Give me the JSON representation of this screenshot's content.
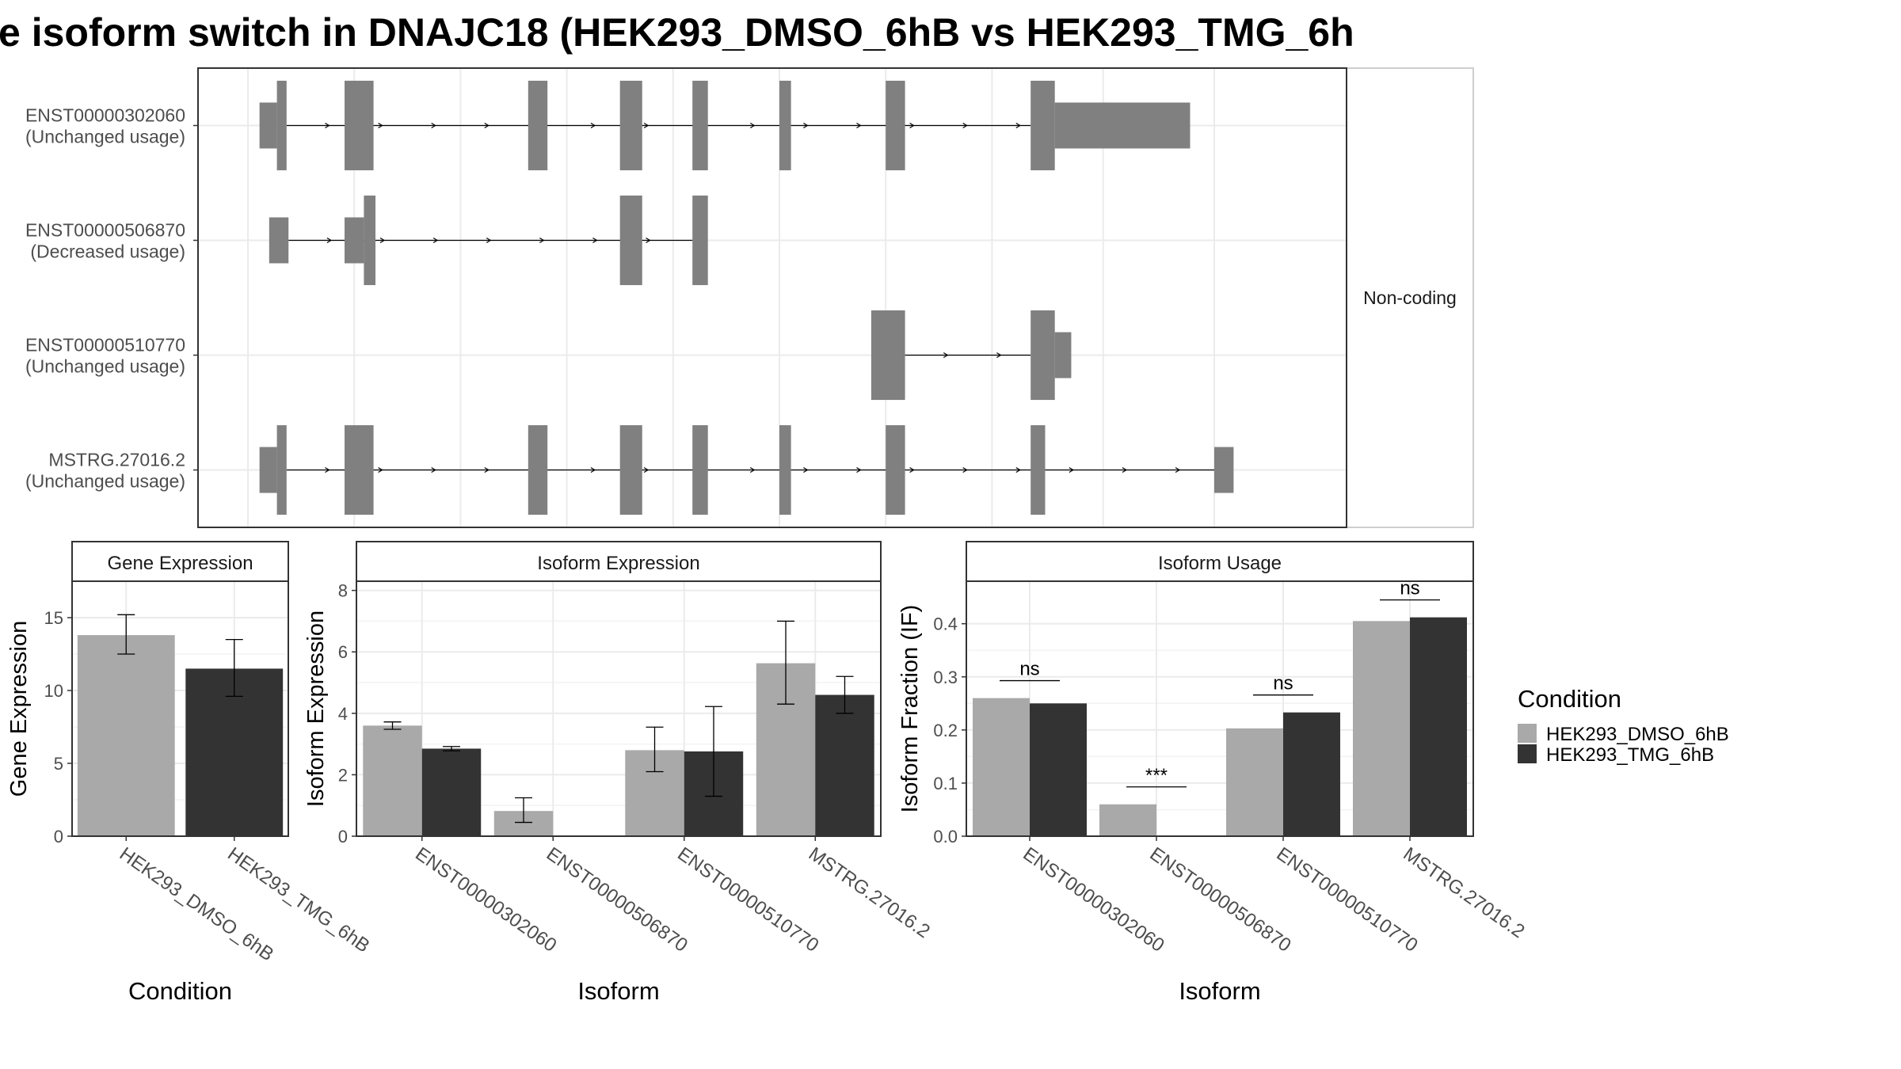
{
  "title": "e isoform switch in DNAJC18 (HEK293_DMSO_6hB vs HEK293_TMG_6h",
  "colors": {
    "dmso": "#a9a9a9",
    "tmg": "#333333",
    "exon": "#808080",
    "grid": "#ebebeb",
    "strip": "#ffffff",
    "border": "#333333"
  },
  "structure": {
    "strip_label": "Non-coding",
    "isoforms": [
      {
        "id": "ENST00000302060",
        "usage": "(Unchanged usage)",
        "exons": [
          [
            0.012,
            0.03,
            "n"
          ],
          [
            0.03,
            0.04,
            "w"
          ],
          [
            0.1,
            0.13,
            "w"
          ],
          [
            0.29,
            0.31,
            "w"
          ],
          [
            0.385,
            0.408,
            "w"
          ],
          [
            0.46,
            0.476,
            "w"
          ],
          [
            0.55,
            0.562,
            "w"
          ],
          [
            0.66,
            0.68,
            "w"
          ],
          [
            0.81,
            0.835,
            "w"
          ],
          [
            0.835,
            0.975,
            "n"
          ]
        ],
        "line": [
          0.04,
          0.81
        ]
      },
      {
        "id": "ENST00000506870",
        "usage": "(Decreased usage)",
        "exons": [
          [
            0.022,
            0.042,
            "n"
          ],
          [
            0.1,
            0.12,
            "n"
          ],
          [
            0.12,
            0.132,
            "w"
          ],
          [
            0.385,
            0.408,
            "w"
          ],
          [
            0.46,
            0.476,
            "w"
          ]
        ],
        "line": [
          0.042,
          0.46
        ]
      },
      {
        "id": "ENST00000510770",
        "usage": "(Unchanged usage)",
        "exons": [
          [
            0.645,
            0.68,
            "w"
          ],
          [
            0.81,
            0.835,
            "w"
          ],
          [
            0.835,
            0.852,
            "n"
          ]
        ],
        "line": [
          0.68,
          0.81
        ]
      },
      {
        "id": "MSTRG.27016.2",
        "usage": "(Unchanged usage)",
        "exons": [
          [
            0.012,
            0.03,
            "n"
          ],
          [
            0.03,
            0.04,
            "w"
          ],
          [
            0.1,
            0.13,
            "w"
          ],
          [
            0.29,
            0.31,
            "w"
          ],
          [
            0.385,
            0.408,
            "w"
          ],
          [
            0.46,
            0.476,
            "w"
          ],
          [
            0.55,
            0.562,
            "w"
          ],
          [
            0.66,
            0.68,
            "w"
          ],
          [
            0.81,
            0.825,
            "w"
          ],
          [
            1.0,
            1.02,
            "n"
          ]
        ],
        "line": [
          0.04,
          1.0
        ]
      }
    ]
  },
  "chart_data": [
    {
      "type": "bar",
      "title": "Gene Expression",
      "xlabel": "Condition",
      "ylabel": "Gene Expression",
      "ylim": [
        0,
        17.5
      ],
      "yticks": [
        "0",
        "5",
        "10",
        "15"
      ],
      "categories": [
        "HEK293_DMSO_6hB",
        "HEK293_TMG_6hB"
      ],
      "series": [
        {
          "values": [
            13.8,
            11.5
          ],
          "err_low": [
            12.5,
            9.6
          ],
          "err_high": [
            15.2,
            13.5
          ]
        }
      ]
    },
    {
      "type": "bar",
      "title": "Isoform Expression",
      "xlabel": "Isoform",
      "ylabel": "Isoform Expression",
      "ylim": [
        0,
        8.3
      ],
      "yticks": [
        "0",
        "2",
        "4",
        "6",
        "8"
      ],
      "categories": [
        "ENST00000302060",
        "ENST00000506870",
        "ENST00000510770",
        "MSTRG.27016.2"
      ],
      "series": [
        {
          "values": [
            3.6,
            0.82,
            2.8,
            5.63
          ],
          "err_low": [
            3.48,
            0.45,
            2.1,
            4.3
          ],
          "err_high": [
            3.72,
            1.25,
            3.55,
            7.0
          ]
        },
        {
          "values": [
            2.85,
            0.0,
            2.76,
            4.6
          ],
          "err_low": [
            2.78,
            0.0,
            1.3,
            4.0
          ],
          "err_high": [
            2.92,
            0.0,
            4.22,
            5.2
          ]
        }
      ]
    },
    {
      "type": "bar",
      "title": "Isoform Usage",
      "xlabel": "Isoform",
      "ylabel": "Isoform Fraction (IF)",
      "ylim": [
        0,
        0.48
      ],
      "yticks": [
        "0.0",
        "0.1",
        "0.2",
        "0.3",
        "0.4"
      ],
      "categories": [
        "ENST00000302060",
        "ENST00000506870",
        "ENST00000510770",
        "MSTRG.27016.2"
      ],
      "series": [
        {
          "values": [
            0.26,
            0.06,
            0.203,
            0.405
          ]
        },
        {
          "values": [
            0.25,
            0.0,
            0.233,
            0.412
          ]
        }
      ],
      "annotations": [
        "ns",
        "***",
        "ns",
        "ns"
      ]
    }
  ],
  "legend": {
    "title": "Condition",
    "placement": "right",
    "entries": [
      "HEK293_DMSO_6hB",
      "HEK293_TMG_6hB"
    ]
  }
}
